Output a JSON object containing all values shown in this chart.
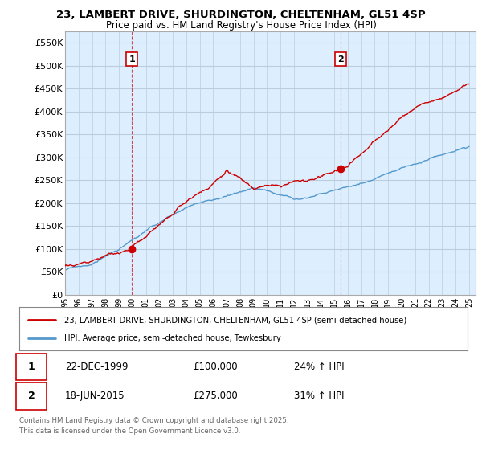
{
  "title_line1": "23, LAMBERT DRIVE, SHURDINGTON, CHELTENHAM, GL51 4SP",
  "title_line2": "Price paid vs. HM Land Registry's House Price Index (HPI)",
  "legend_line1": "23, LAMBERT DRIVE, SHURDINGTON, CHELTENHAM, GL51 4SP (semi-detached house)",
  "legend_line2": "HPI: Average price, semi-detached house, Tewkesbury",
  "annotation1_date": "22-DEC-1999",
  "annotation1_price": "£100,000",
  "annotation1_hpi": "24% ↑ HPI",
  "annotation2_date": "18-JUN-2015",
  "annotation2_price": "£275,000",
  "annotation2_hpi": "31% ↑ HPI",
  "footer": "Contains HM Land Registry data © Crown copyright and database right 2025.\nThis data is licensed under the Open Government Licence v3.0.",
  "ylim": [
    0,
    575000
  ],
  "yticks": [
    0,
    50000,
    100000,
    150000,
    200000,
    250000,
    300000,
    350000,
    400000,
    450000,
    500000,
    550000
  ],
  "ytick_labels": [
    "£0",
    "£50K",
    "£100K",
    "£150K",
    "£200K",
    "£250K",
    "£300K",
    "£350K",
    "£400K",
    "£450K",
    "£500K",
    "£550K"
  ],
  "background_color": "#ffffff",
  "plot_bg_color": "#ddeeff",
  "grid_color": "#bbccdd",
  "red_color": "#cc0000",
  "blue_color": "#5599cc",
  "vline_color": "#cc0000",
  "sale1_x": 1999.97,
  "sale1_y": 100000,
  "sale2_x": 2015.46,
  "sale2_y": 275000,
  "xlim_left": 1995,
  "xlim_right": 2025.5
}
